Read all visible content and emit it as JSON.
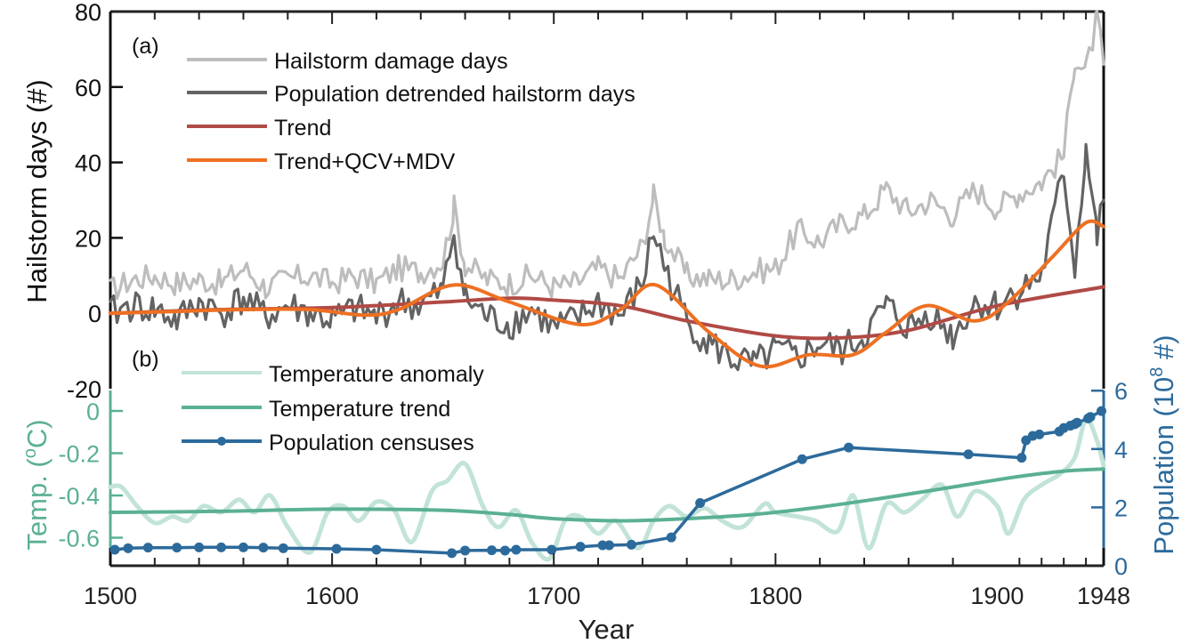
{
  "chart_data": [
    {
      "panel": "(a)",
      "type": "line",
      "xlabel": "",
      "ylabel": "Hailstorm days (#)",
      "xlim": [
        1500,
        1948
      ],
      "ylim": [
        -20,
        80
      ],
      "yticks": [
        "80",
        "60",
        "40",
        "20",
        "0",
        "-20"
      ],
      "ytick_values": [
        80,
        60,
        40,
        20,
        0,
        -20
      ],
      "grid": false,
      "legend_position": "top-left",
      "series": [
        {
          "name": "Hailstorm damage days",
          "color": "#bdbdbd",
          "x": [
            1500,
            1510,
            1520,
            1530,
            1540,
            1550,
            1560,
            1570,
            1580,
            1590,
            1600,
            1610,
            1620,
            1630,
            1640,
            1650,
            1655,
            1660,
            1670,
            1680,
            1690,
            1700,
            1710,
            1720,
            1730,
            1740,
            1745,
            1750,
            1760,
            1770,
            1780,
            1790,
            1800,
            1805,
            1810,
            1820,
            1830,
            1840,
            1850,
            1860,
            1870,
            1880,
            1890,
            1900,
            1910,
            1920,
            1930,
            1935,
            1940,
            1945,
            1948
          ],
          "y": [
            6,
            9,
            10,
            8,
            9,
            8,
            12,
            7,
            9,
            10,
            8,
            10,
            8,
            12,
            11,
            14,
            28,
            13,
            9,
            8,
            10,
            7,
            8,
            12,
            9,
            18,
            31,
            20,
            10,
            9,
            9,
            11,
            12,
            17,
            22,
            19,
            24,
            26,
            33,
            27,
            30,
            26,
            33,
            28,
            32,
            35,
            42,
            68,
            64,
            78,
            66
          ]
        },
        {
          "name": "Population detrended hailstorm days",
          "color": "#636363",
          "x": [
            1500,
            1510,
            1520,
            1530,
            1540,
            1550,
            1560,
            1570,
            1580,
            1590,
            1600,
            1610,
            1620,
            1630,
            1640,
            1650,
            1655,
            1660,
            1670,
            1680,
            1690,
            1700,
            1710,
            1720,
            1730,
            1740,
            1745,
            1750,
            1760,
            1770,
            1780,
            1790,
            1800,
            1810,
            1820,
            1830,
            1840,
            1850,
            1860,
            1870,
            1880,
            1890,
            1900,
            1910,
            1920,
            1930,
            1935,
            1940,
            1945,
            1948
          ],
          "y": [
            0,
            2,
            1,
            -2,
            3,
            0,
            4,
            -1,
            2,
            0,
            -2,
            1,
            -1,
            3,
            2,
            6,
            22,
            4,
            -1,
            -3,
            1,
            -4,
            -2,
            3,
            -1,
            8,
            22,
            12,
            -2,
            -8,
            -12,
            -14,
            -10,
            -12,
            -8,
            -10,
            -6,
            2,
            -4,
            0,
            -6,
            3,
            2,
            6,
            10,
            38,
            12,
            44,
            20,
            30
          ]
        },
        {
          "name": "Trend",
          "color": "#b04a45",
          "x": [
            1500,
            1550,
            1600,
            1650,
            1680,
            1700,
            1730,
            1760,
            1800,
            1830,
            1860,
            1900,
            1948
          ],
          "y": [
            0,
            1,
            1.5,
            3,
            4,
            3.5,
            2,
            -2,
            -6,
            -6.5,
            -4.5,
            2,
            7
          ]
        },
        {
          "name": "Trend+QCV+MDV",
          "color": "#ee7022",
          "x": [
            1500,
            1530,
            1560,
            1590,
            1615,
            1630,
            1655,
            1680,
            1712,
            1730,
            1746,
            1770,
            1793,
            1815,
            1835,
            1850,
            1868,
            1890,
            1905,
            1925,
            1940,
            1948
          ],
          "y": [
            0,
            0.5,
            1,
            1,
            -0.5,
            1,
            7.5,
            3,
            -3,
            1,
            7.5,
            -5,
            -14,
            -11,
            -11,
            -5,
            2,
            -2,
            3,
            15,
            24,
            23
          ]
        }
      ],
      "legend": [
        "Hailstorm damage days",
        "Population detrended hailstorm days",
        "Trend",
        "Trend+QCV+MDV"
      ]
    },
    {
      "panel": "(b)",
      "type": "line",
      "xlabel": "Year",
      "ylabel_left": "Temp. (°C)",
      "ylabel_right": "Population (10⁸ #)",
      "xlim": [
        1500,
        1948
      ],
      "xticks": [
        "1500",
        "1600",
        "1700",
        "1800",
        "1900",
        "1948"
      ],
      "xtick_values": [
        1500,
        1600,
        1700,
        1800,
        1900,
        1948
      ],
      "ylim_left": [
        -0.735,
        0.04
      ],
      "yticks_left": [
        "0",
        "-0.2",
        "-0.4",
        "-0.6"
      ],
      "ytick_values_left": [
        0,
        -0.2,
        -0.4,
        -0.6
      ],
      "ylim_right": [
        0,
        6
      ],
      "yticks_right": [
        "0",
        "2",
        "4",
        "6"
      ],
      "ytick_values_right": [
        0,
        2,
        4,
        6
      ],
      "grid": false,
      "legend_position": "top-left",
      "series": [
        {
          "name": "Temperature anomaly",
          "axis": "left",
          "color": "#c2e3d8",
          "x": [
            1500,
            1505,
            1512,
            1520,
            1528,
            1535,
            1542,
            1550,
            1558,
            1565,
            1572,
            1580,
            1590,
            1598,
            1605,
            1612,
            1620,
            1628,
            1636,
            1645,
            1652,
            1660,
            1668,
            1675,
            1683,
            1690,
            1698,
            1705,
            1712,
            1720,
            1728,
            1738,
            1745,
            1752,
            1760,
            1768,
            1776,
            1785,
            1795,
            1800,
            1810,
            1818,
            1828,
            1835,
            1842,
            1850,
            1858,
            1866,
            1875,
            1882,
            1890,
            1900,
            1905,
            1912,
            1920,
            1928,
            1935,
            1940,
            1945,
            1948
          ],
          "y": [
            -0.36,
            -0.36,
            -0.45,
            -0.53,
            -0.5,
            -0.52,
            -0.45,
            -0.48,
            -0.42,
            -0.48,
            -0.4,
            -0.55,
            -0.67,
            -0.48,
            -0.45,
            -0.52,
            -0.43,
            -0.47,
            -0.62,
            -0.38,
            -0.33,
            -0.25,
            -0.45,
            -0.55,
            -0.47,
            -0.62,
            -0.7,
            -0.52,
            -0.5,
            -0.58,
            -0.52,
            -0.65,
            -0.52,
            -0.45,
            -0.5,
            -0.46,
            -0.52,
            -0.55,
            -0.44,
            -0.48,
            -0.5,
            -0.52,
            -0.57,
            -0.4,
            -0.65,
            -0.44,
            -0.48,
            -0.42,
            -0.35,
            -0.5,
            -0.38,
            -0.45,
            -0.58,
            -0.42,
            -0.35,
            -0.3,
            -0.22,
            -0.04,
            -0.14,
            -0.26
          ]
        },
        {
          "name": "Temperature trend",
          "axis": "left",
          "color": "#5bb094",
          "x": [
            1500,
            1550,
            1600,
            1650,
            1680,
            1700,
            1730,
            1760,
            1790,
            1820,
            1850,
            1880,
            1910,
            1930,
            1948
          ],
          "y": [
            -0.48,
            -0.475,
            -0.465,
            -0.47,
            -0.49,
            -0.51,
            -0.52,
            -0.51,
            -0.49,
            -0.455,
            -0.41,
            -0.36,
            -0.31,
            -0.285,
            -0.275
          ]
        },
        {
          "name": "Population censuses",
          "axis": "right",
          "color": "#2c6a9b",
          "markers": true,
          "x": [
            1502,
            1508,
            1517,
            1530,
            1540,
            1550,
            1560,
            1569,
            1578,
            1602,
            1620,
            1654,
            1660,
            1672,
            1678,
            1683,
            1699,
            1712,
            1722,
            1725,
            1735,
            1753,
            1766,
            1812,
            1833,
            1887,
            1911,
            1913,
            1916,
            1919,
            1928,
            1930,
            1933,
            1935,
            1936,
            1941,
            1942,
            1947
          ],
          "y": [
            0.55,
            0.6,
            0.62,
            0.62,
            0.63,
            0.63,
            0.63,
            0.62,
            0.6,
            0.58,
            0.55,
            0.43,
            0.52,
            0.53,
            0.52,
            0.55,
            0.55,
            0.65,
            0.7,
            0.7,
            0.72,
            0.97,
            2.15,
            3.65,
            4.05,
            3.82,
            3.7,
            4.3,
            4.45,
            4.5,
            4.6,
            4.72,
            4.8,
            4.85,
            4.9,
            5.05,
            5.1,
            5.3
          ]
        }
      ],
      "legend": [
        "Temperature anomaly",
        "Temperature trend",
        "Population censuses"
      ]
    }
  ],
  "labels": {
    "panel_a": "(a)",
    "panel_b": "(b)",
    "ylabel_a": "Hailstorm days (#)",
    "ylabel_temp_prefix": "Temp. (",
    "ylabel_temp_sup": "o",
    "ylabel_temp_suffix": "C)",
    "ylabel_pop_prefix": "Population (10",
    "ylabel_pop_sup": "8",
    "ylabel_pop_suffix": " #)",
    "xlabel": "Year",
    "legend_a": [
      "Hailstorm damage days",
      "Population detrended hailstorm days",
      "Trend",
      "Trend+QCV+MDV"
    ],
    "legend_b": [
      "Temperature anomaly",
      "Temperature trend",
      "Population censuses"
    ]
  },
  "colors": {
    "hail_light": "#bdbdbd",
    "hail_dark": "#636363",
    "trend": "#b04a45",
    "trend_qcv": "#ee7022",
    "temp_anom": "#c2e3d8",
    "temp_trend": "#5bb094",
    "population": "#2c6a9b",
    "temp_axis": "#5bb094",
    "pop_axis": "#2c6a9b"
  }
}
